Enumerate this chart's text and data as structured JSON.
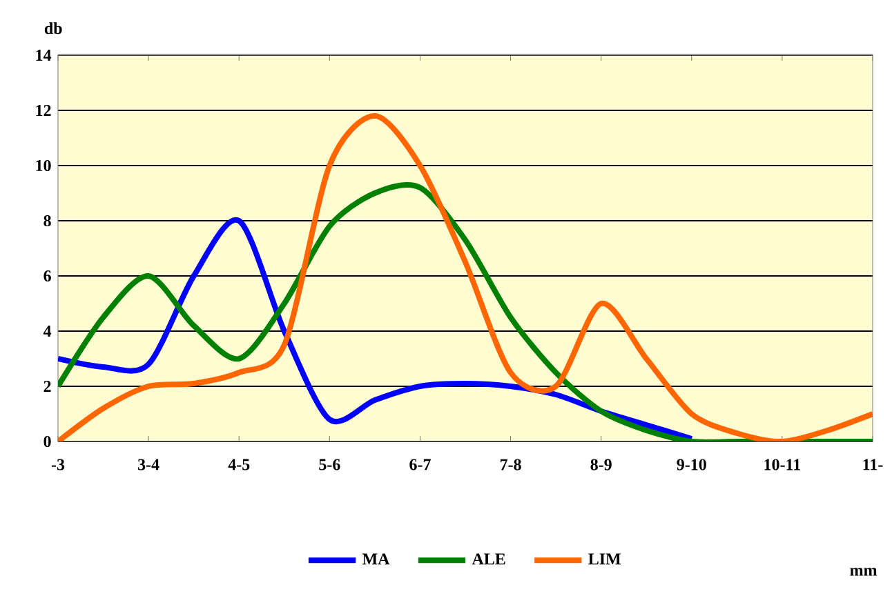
{
  "chart_data": {
    "type": "line",
    "ylabel": "db",
    "annotations": [
      "mm"
    ],
    "categories": [
      "-3",
      null,
      "3-4",
      null,
      "4-5",
      null,
      "5-6",
      null,
      "6-7",
      null,
      "7-8",
      null,
      "8-9",
      null,
      "9-10",
      null,
      "10-11",
      null,
      "11-"
    ],
    "series": [
      {
        "name": "MA",
        "color": "#0000ff",
        "values": [
          3.0,
          2.7,
          2.8,
          6.0,
          8.0,
          4.0,
          0.8,
          1.5,
          2.0,
          2.1,
          2.0,
          1.7,
          1.1,
          0.6,
          0.1,
          null,
          null,
          null,
          null
        ]
      },
      {
        "name": "ALE",
        "color": "#008000",
        "values": [
          2.0,
          4.5,
          6.0,
          4.2,
          3.0,
          5.0,
          7.8,
          9.0,
          9.2,
          7.3,
          4.5,
          2.5,
          1.1,
          0.4,
          0,
          0,
          0,
          0,
          0
        ]
      },
      {
        "name": "LIM",
        "color": "#ff6600",
        "values": [
          0,
          1.2,
          2.0,
          2.1,
          2.5,
          3.5,
          10.0,
          11.8,
          10.0,
          6.5,
          2.5,
          2.0,
          5.0,
          3.0,
          1.0,
          0.3,
          0,
          0.4,
          1.0
        ]
      }
    ],
    "ylim": [
      0,
      14
    ],
    "yticks": [
      0,
      2,
      4,
      6,
      8,
      10,
      12,
      14
    ],
    "grid": "y",
    "legend": "bottom",
    "marker": "none",
    "line_style": "solid"
  }
}
